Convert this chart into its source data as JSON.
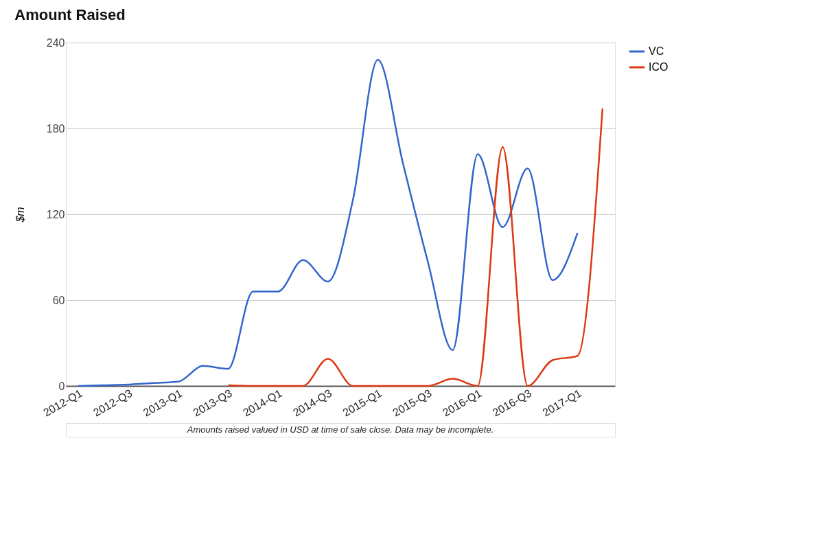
{
  "chart_data": {
    "type": "line",
    "title": "Amount Raised",
    "ylabel": "$m",
    "categories": [
      "2012-Q1",
      null,
      "2012-Q3",
      null,
      "2013-Q1",
      null,
      "2013-Q3",
      null,
      "2014-Q1",
      null,
      "2014-Q3",
      null,
      "2015-Q1",
      null,
      "2015-Q3",
      null,
      "2016-Q1",
      null,
      "2016-Q3",
      null,
      "2017-Q1",
      null
    ],
    "series": [
      {
        "name": "VC",
        "color": "#3366cc",
        "values": [
          0,
          0.5,
          1,
          2,
          3,
          14,
          12,
          66,
          66,
          88,
          73,
          130,
          228,
          156,
          87,
          25,
          162,
          111,
          152,
          74,
          107,
          null
        ]
      },
      {
        "name": "ICO",
        "color": "#dc3912",
        "values": [
          null,
          null,
          null,
          null,
          null,
          null,
          0.5,
          0,
          0,
          0,
          19,
          0,
          0,
          0,
          0,
          5,
          0,
          167,
          0,
          18,
          21,
          194
        ]
      }
    ],
    "ylim": [
      0,
      240
    ],
    "yticks": [
      0,
      60,
      120,
      180,
      240
    ],
    "grid": "y",
    "legend": "top right",
    "marker": "none",
    "line_style": "solid",
    "annotations": [
      "Amounts raised valued in USD at time of sale close. Data may be incomplete."
    ]
  }
}
